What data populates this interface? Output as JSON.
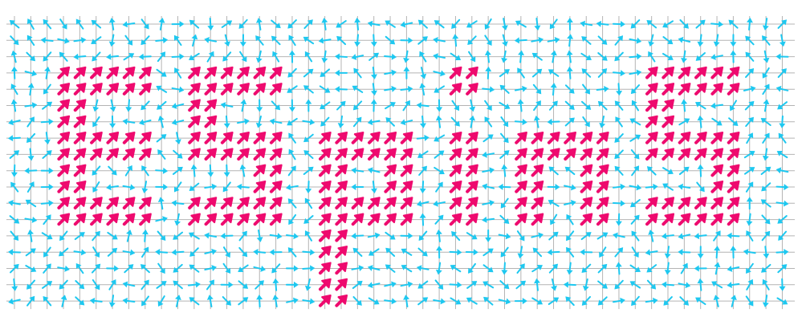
{
  "pattern": [
    "................................................",
    "................................................",
    "................................................",
    "...######..######..........##..........######...",
    "...######..######..........##..........######...",
    "...##......##..........................##.......",
    "...##......##..........................##.......",
    "...######..######..######..##..######..######...",
    "...######..######..######..##..######..######...",
    "...##..........##..##..##..##..##..##......##...",
    "...##..........##..##..##..##..##..##......##...",
    "...######..######..######..##..##..##..######...",
    "...######..######..######..##..##..##..######...",
    "...................##...........................",
    "...................##...........................",
    "...................##...........................",
    "...................##...........................",
    "...................##..........................."
  ],
  "colors": {
    "on": "#ee0a6e",
    "off": "#1ec8f0",
    "grid": "#b4b4b4"
  }
}
